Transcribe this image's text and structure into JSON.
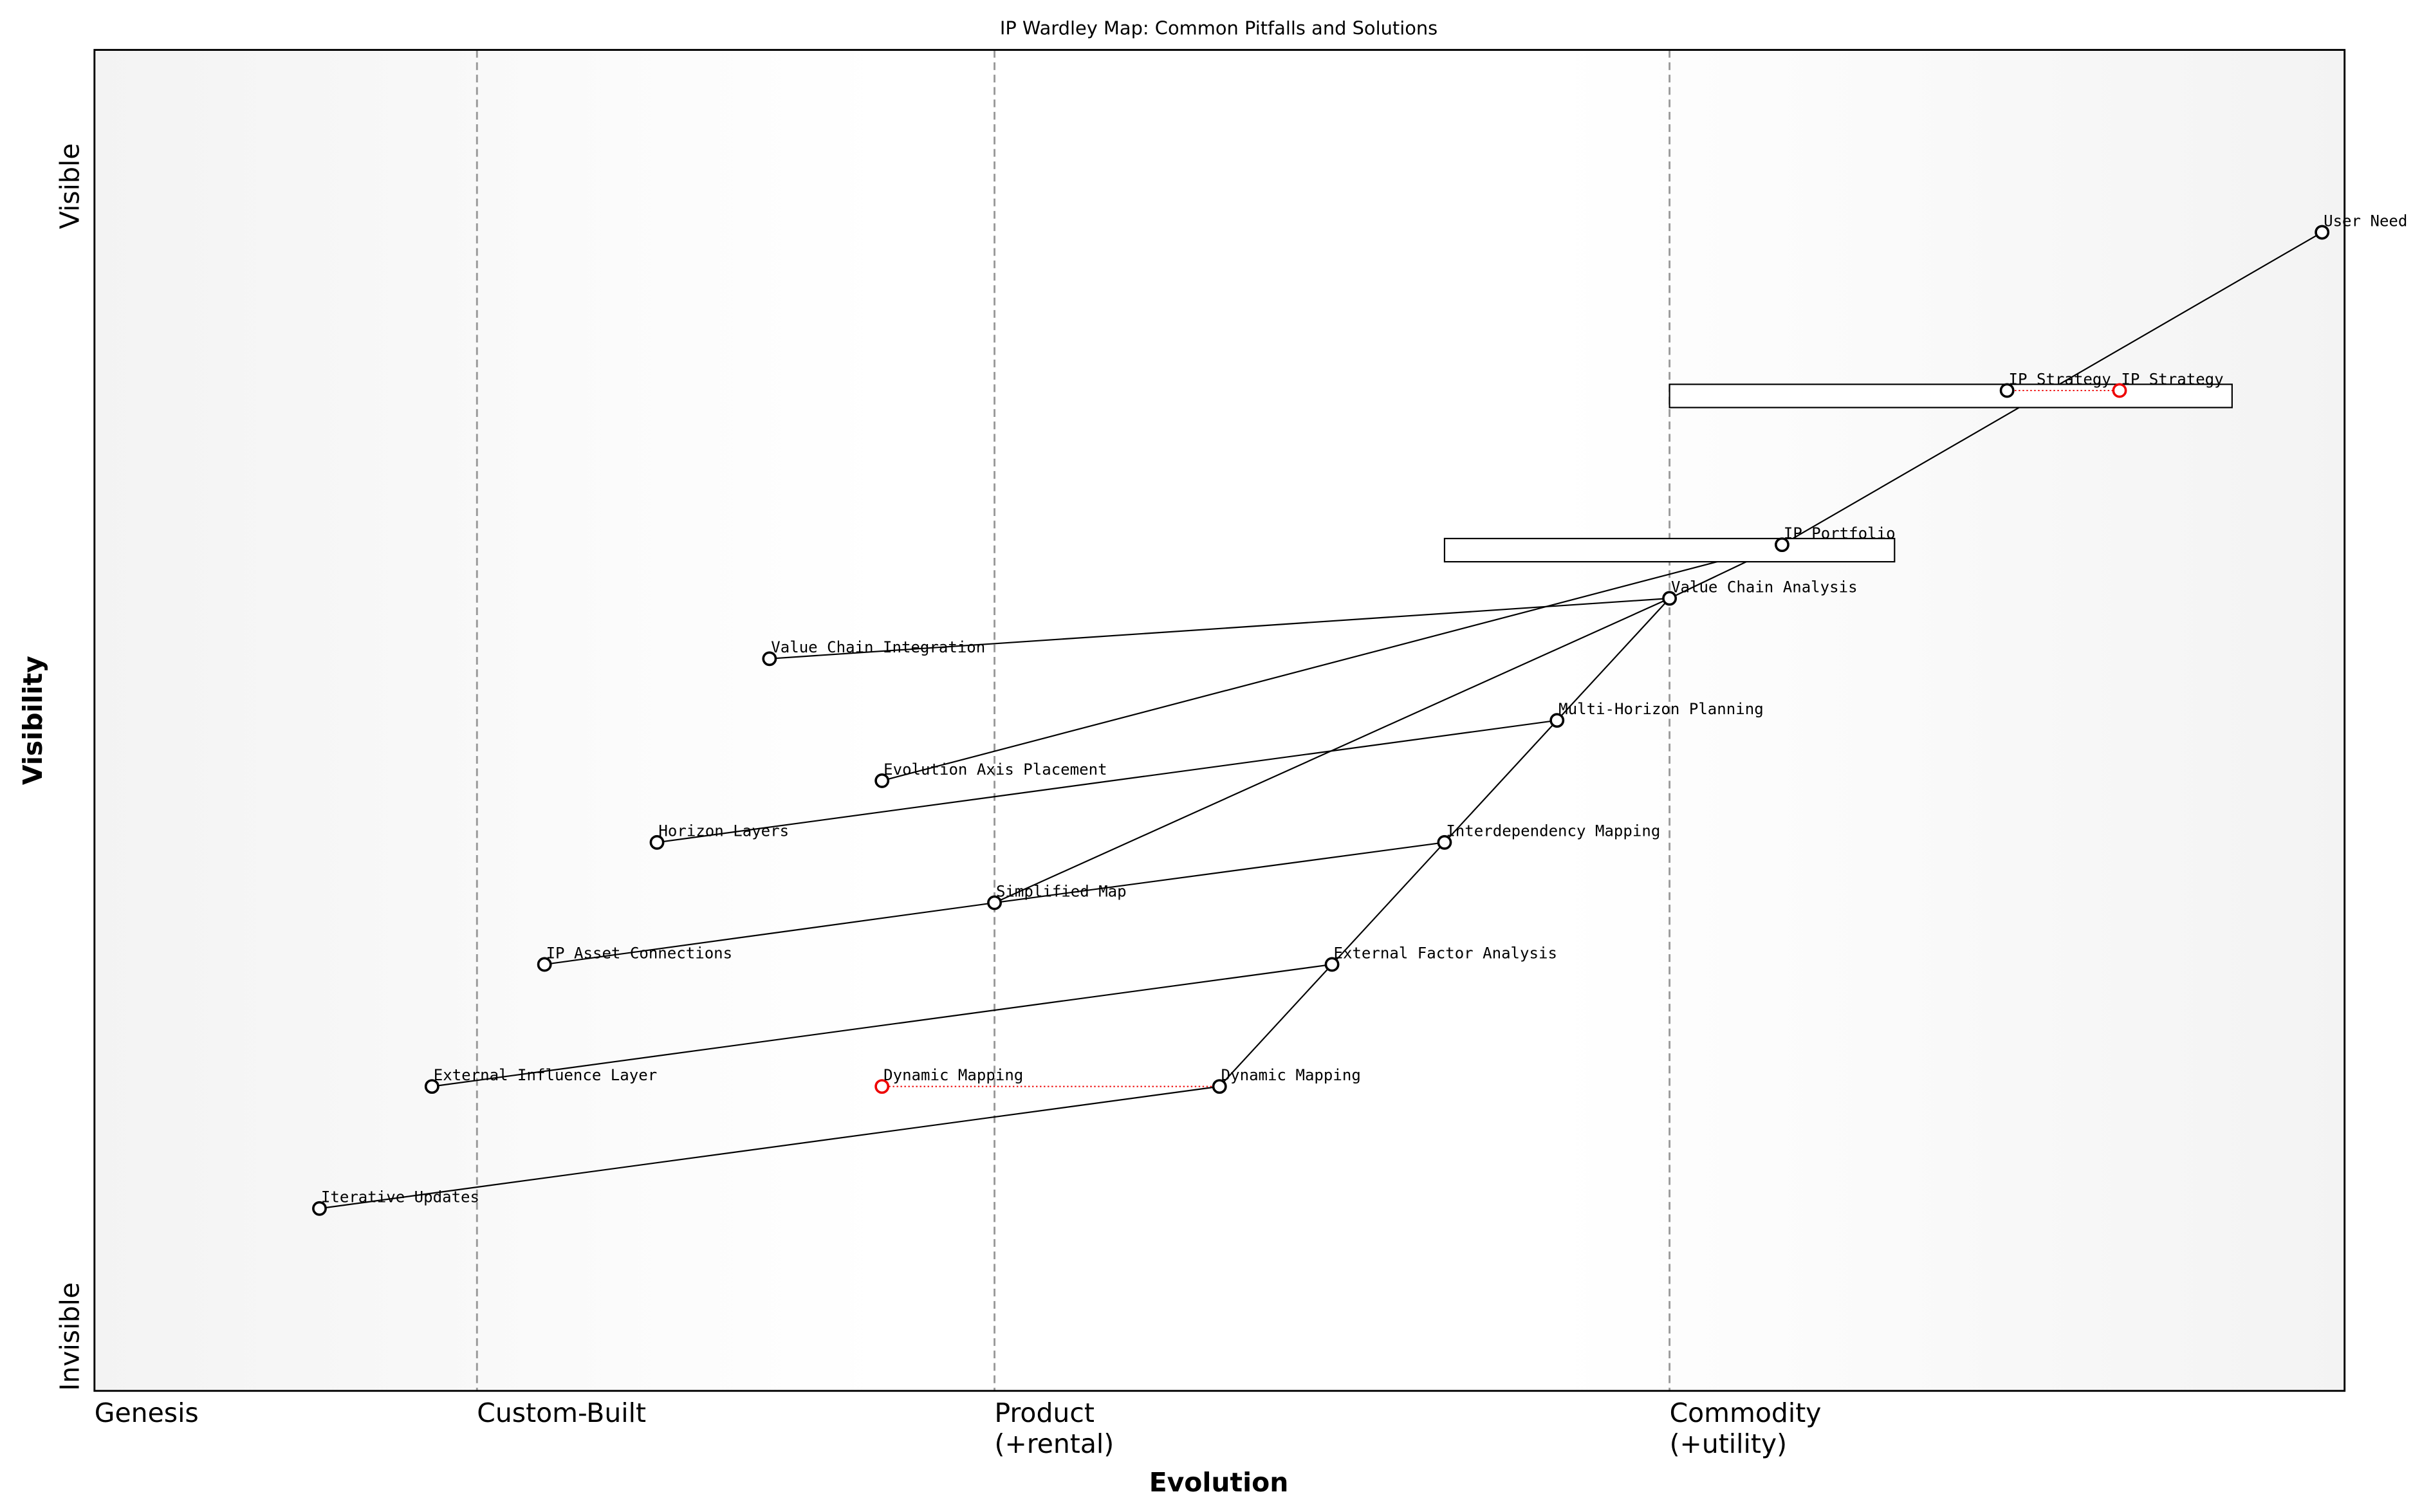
{
  "chart_data": {
    "type": "wardley",
    "title": "IP Wardley Map: Common Pitfalls and Solutions",
    "xlabel": "Evolution",
    "ylabel": "Visibility",
    "visibility_labels": {
      "high": "Visible",
      "low": "Invisible"
    },
    "xlim": [
      0,
      1
    ],
    "ylim": [
      0,
      1
    ],
    "xticks": [
      {
        "value": 0,
        "label": "Genesis"
      },
      {
        "value": 0.17,
        "label": "Custom-Built"
      },
      {
        "value": 0.4,
        "label": "Product\n(+rental)"
      },
      {
        "value": 0.7,
        "label": "Commodity\n(+utility)"
      }
    ],
    "components": [
      {
        "name": "User Need",
        "x": 0.99,
        "y": 0.864
      },
      {
        "name": "IP Strategy",
        "x": 0.85,
        "y": 0.746,
        "evolved_x": 0.9,
        "pipeline": [
          0.7,
          0.95
        ]
      },
      {
        "name": "IP Portfolio",
        "x": 0.75,
        "y": 0.631,
        "pipeline": [
          0.6,
          0.8
        ]
      },
      {
        "name": "Value Chain Analysis",
        "x": 0.7,
        "y": 0.591
      },
      {
        "name": "Value Chain Integration",
        "x": 0.3,
        "y": 0.546
      },
      {
        "name": "Multi-Horizon Planning",
        "x": 0.65,
        "y": 0.5
      },
      {
        "name": "Evolution Axis Placement",
        "x": 0.35,
        "y": 0.455
      },
      {
        "name": "Horizon Layers",
        "x": 0.25,
        "y": 0.409
      },
      {
        "name": "Interdependency Mapping",
        "x": 0.6,
        "y": 0.409
      },
      {
        "name": "Simplified Map",
        "x": 0.4,
        "y": 0.364
      },
      {
        "name": "IP Asset Connections",
        "x": 0.2,
        "y": 0.318
      },
      {
        "name": "External Factor Analysis",
        "x": 0.55,
        "y": 0.318
      },
      {
        "name": "External Influence Layer",
        "x": 0.15,
        "y": 0.227
      },
      {
        "name": "Dynamic Mapping",
        "x": 0.5,
        "y": 0.227,
        "evolved_x": 0.35
      },
      {
        "name": "Iterative Updates",
        "x": 0.1,
        "y": 0.136
      }
    ],
    "links": [
      [
        "User Need",
        "IP Portfolio"
      ],
      [
        "IP Portfolio",
        "Value Chain Analysis"
      ],
      [
        "IP Portfolio",
        "Evolution Axis Placement"
      ],
      [
        "Value Chain Analysis",
        "Value Chain Integration"
      ],
      [
        "Value Chain Analysis",
        "Multi-Horizon Planning"
      ],
      [
        "Value Chain Analysis",
        "Simplified Map"
      ],
      [
        "Multi-Horizon Planning",
        "Horizon Layers"
      ],
      [
        "Multi-Horizon Planning",
        "Interdependency Mapping"
      ],
      [
        "Interdependency Mapping",
        "Simplified Map"
      ],
      [
        "Interdependency Mapping",
        "External Factor Analysis"
      ],
      [
        "Simplified Map",
        "IP Asset Connections"
      ],
      [
        "External Factor Analysis",
        "External Influence Layer"
      ],
      [
        "External Factor Analysis",
        "Dynamic Mapping"
      ],
      [
        "Dynamic Mapping",
        "Iterative Updates"
      ]
    ]
  }
}
